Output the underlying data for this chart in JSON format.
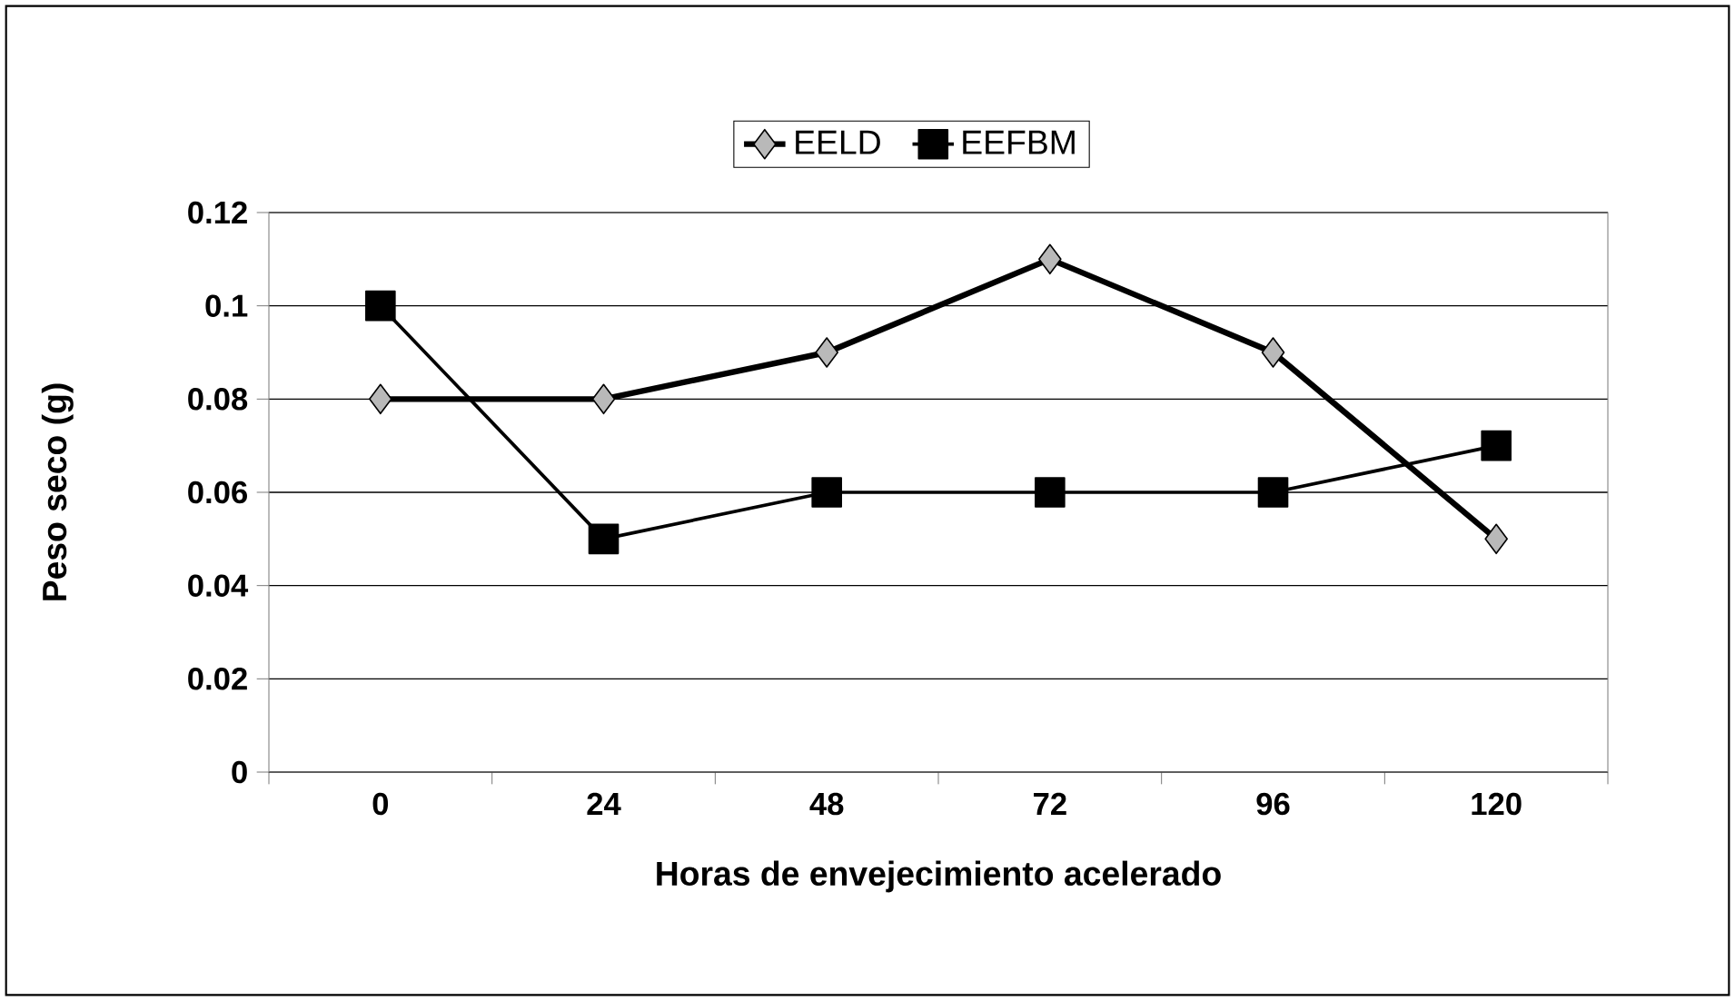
{
  "chart_data": {
    "type": "line",
    "xlabel": "Horas de envejecimiento acelerado",
    "ylabel": "Peso seco (g)",
    "categories": [
      "0",
      "24",
      "48",
      "72",
      "96",
      "120"
    ],
    "series": [
      {
        "name": "EELD",
        "color": "#000000",
        "marker": "diamond",
        "values": [
          0.08,
          0.08,
          0.09,
          0.11,
          0.09,
          0.05
        ]
      },
      {
        "name": "EEFBM",
        "color": "#000000",
        "marker": "square",
        "values": [
          0.1,
          0.05,
          0.06,
          0.06,
          0.06,
          0.07
        ]
      }
    ],
    "ylim": [
      0,
      0.12
    ],
    "yticks": [
      0,
      0.02,
      0.04,
      0.06,
      0.08,
      0.1,
      0.12
    ],
    "grid": "y",
    "legend": "top",
    "line_style": "solid"
  }
}
